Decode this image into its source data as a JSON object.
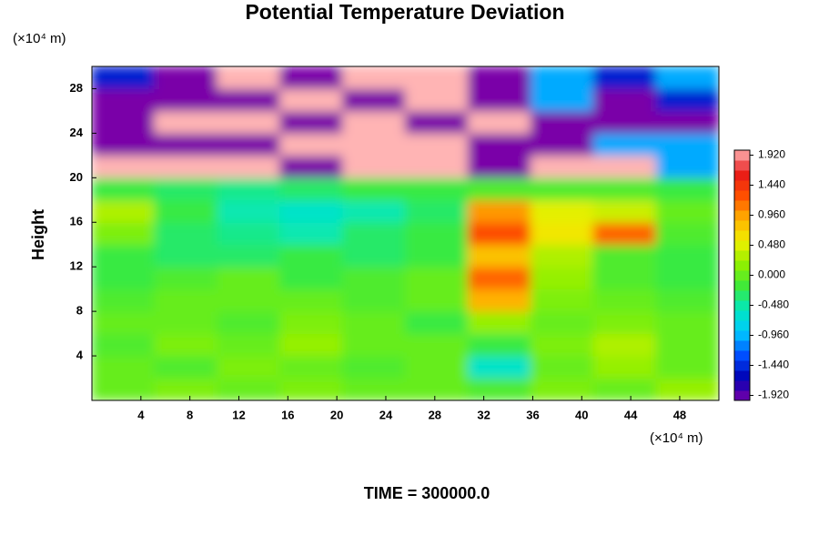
{
  "chart_data": {
    "type": "heatmap",
    "title": "Potential Temperature Deviation",
    "x_unit_label": "(×10⁴ m)",
    "y_unit_label": "(×10⁴ m)",
    "y_label": "Height",
    "footer": "TIME = 300000.0",
    "xlim": [
      0,
      51.2
    ],
    "ylim": [
      0,
      30
    ],
    "xticks": [
      4,
      8,
      12,
      16,
      20,
      24,
      28,
      32,
      36,
      40,
      44,
      48
    ],
    "yticks": [
      4,
      8,
      12,
      16,
      20,
      24,
      28
    ],
    "x": [
      0,
      5.12,
      10.24,
      15.36,
      20.48,
      25.6,
      30.72,
      35.84,
      40.96,
      46.08,
      51.2
    ],
    "y": [
      0,
      2,
      4,
      6,
      8,
      10,
      12,
      14,
      16,
      18,
      20,
      22,
      24,
      26,
      28,
      30
    ],
    "z": [
      [
        0,
        0.1,
        0,
        0.1,
        0,
        0,
        -0.1,
        0.1,
        0,
        0.2
      ],
      [
        0,
        -0.1,
        0.1,
        0,
        -0.1,
        0,
        -0.6,
        0,
        0.2,
        0
      ],
      [
        -0.1,
        0.1,
        0,
        0.2,
        0,
        0,
        -0.2,
        0.1,
        0.3,
        0
      ],
      [
        0,
        0,
        -0.1,
        0.1,
        0,
        -0.2,
        0.2,
        0,
        0.1,
        0
      ],
      [
        -0.1,
        0,
        0,
        0,
        -0.1,
        0,
        0.9,
        0.1,
        0,
        -0.1
      ],
      [
        -0.2,
        -0.1,
        0,
        -0.2,
        -0.1,
        0,
        1.2,
        0.2,
        -0.1,
        -0.2
      ],
      [
        -0.2,
        -0.3,
        -0.3,
        -0.2,
        -0.3,
        -0.2,
        0.8,
        0.3,
        -0.1,
        -0.2
      ],
      [
        0.1,
        -0.3,
        -0.4,
        -0.5,
        -0.3,
        -0.2,
        1.3,
        0.6,
        1.2,
        -0.1
      ],
      [
        0.3,
        -0.2,
        -0.5,
        -0.6,
        -0.5,
        -0.3,
        1.0,
        0.5,
        0.4,
        0
      ],
      [
        -0.2,
        -0.3,
        -0.4,
        -0.3,
        -0.2,
        -0.2,
        -0.1,
        -0.1,
        -0.1,
        -0.2
      ],
      [
        2,
        2,
        2,
        -2,
        2,
        2,
        -2,
        2,
        2,
        -1
      ],
      [
        -2,
        -2,
        -2,
        2,
        2,
        2,
        -2,
        -2,
        -1,
        -1
      ],
      [
        -2,
        2,
        2,
        -2,
        2,
        -2,
        2,
        -2,
        -2,
        -2
      ],
      [
        -2,
        -2,
        -2,
        2,
        -2,
        2,
        -2,
        -1,
        -2,
        -1.5
      ],
      [
        -1.5,
        -2,
        2,
        -2,
        2,
        2,
        -2,
        -1,
        -1.5,
        -1
      ]
    ],
    "clim": [
      -2,
      2
    ],
    "colors": [
      "#7a00a8",
      "#0000b4",
      "#0050ff",
      "#00c8ff",
      "#00e8c0",
      "#3cea3c",
      "#90f000",
      "#f0f000",
      "#ffb000",
      "#ff5000",
      "#e81818",
      "#ffb4b4"
    ],
    "colorbar_ticks": [
      {
        "value": 1.92,
        "label": "1.920"
      },
      {
        "value": 1.44,
        "label": "1.440"
      },
      {
        "value": 0.96,
        "label": "0.960"
      },
      {
        "value": 0.48,
        "label": "0.480"
      },
      {
        "value": 0,
        "label": "0.000"
      },
      {
        "value": -0.48,
        "label": "-0.480"
      },
      {
        "value": -0.96,
        "label": "-0.960"
      },
      {
        "value": -1.44,
        "label": "-1.440"
      },
      {
        "value": -1.92,
        "label": "-1.920"
      }
    ]
  }
}
